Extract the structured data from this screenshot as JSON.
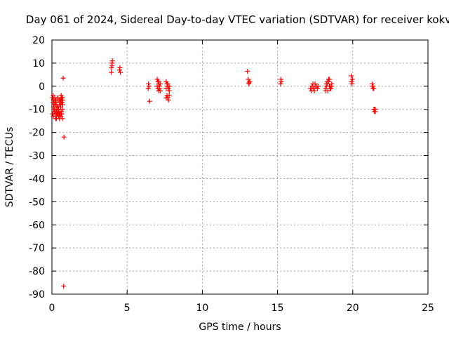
{
  "chart_data": {
    "type": "scatter",
    "title": "Day 061 of 2024, Sidereal Day-to-day VTEC variation (SDTVAR) for receiver kokv",
    "xlabel": "GPS time / hours",
    "ylabel": "SDTVAR / TECUs",
    "xlim": [
      0,
      25
    ],
    "ylim": [
      -90,
      20
    ],
    "xticks": [
      0,
      5,
      10,
      15,
      20,
      25
    ],
    "yticks": [
      20,
      10,
      0,
      -10,
      -20,
      -30,
      -40,
      -50,
      -60,
      -70,
      -80,
      -90
    ],
    "grid": true,
    "marker": "+",
    "color": "#ff0000",
    "series": [
      {
        "name": "SDTVAR",
        "x": [
          0.05,
          0.08,
          0.1,
          0.12,
          0.15,
          0.18,
          0.2,
          0.22,
          0.25,
          0.28,
          0.3,
          0.32,
          0.35,
          0.38,
          0.4,
          0.42,
          0.45,
          0.48,
          0.5,
          0.52,
          0.55,
          0.58,
          0.6,
          0.62,
          0.65,
          0.68,
          0.7,
          0.72,
          0.05,
          0.1,
          0.15,
          0.2,
          0.25,
          0.3,
          0.35,
          0.4,
          0.45,
          0.5,
          0.55,
          0.6,
          0.65,
          0.7,
          0.1,
          0.2,
          0.3,
          0.4,
          0.5,
          0.6,
          0.7,
          0.15,
          0.25,
          0.35,
          0.45,
          0.55,
          0.65,
          0.08,
          0.18,
          0.28,
          0.38,
          0.48,
          0.58,
          0.68,
          0.12,
          0.22,
          0.32,
          0.42,
          0.52,
          0.62,
          0.72,
          0.3,
          0.5,
          0.65,
          0.75,
          0.8,
          0.78,
          3.95,
          3.97,
          4.0,
          4.0,
          4.02,
          4.5,
          4.52,
          4.55,
          6.4,
          6.45,
          6.42,
          6.5,
          7.0,
          7.05,
          7.1,
          7.15,
          7.2,
          7.0,
          7.05,
          7.1,
          7.15,
          7.2,
          7.1,
          7.6,
          7.65,
          7.7,
          7.75,
          7.8,
          7.6,
          7.65,
          7.7,
          7.75,
          7.8,
          7.6,
          7.7,
          7.8,
          13.0,
          13.05,
          13.1,
          13.15,
          13.1,
          15.2,
          15.22,
          15.25,
          17.2,
          17.25,
          17.3,
          17.35,
          17.4,
          17.45,
          17.5,
          17.2,
          17.3,
          17.4,
          17.5,
          17.6,
          17.65,
          17.7,
          18.2,
          18.25,
          18.3,
          18.35,
          18.4,
          18.45,
          18.5,
          18.55,
          18.6,
          18.2,
          18.3,
          18.4,
          18.5,
          18.6,
          18.25,
          18.45,
          19.9,
          19.92,
          19.95,
          19.98,
          21.3,
          21.35,
          21.4,
          21.45,
          21.5,
          21.3,
          21.35,
          21.4,
          21.45,
          21.5
        ],
        "y": [
          -5,
          -7,
          -6,
          -9,
          -8,
          -10,
          -11,
          -7,
          -6,
          -12,
          -13,
          -8,
          -9,
          -5,
          -6,
          -10,
          -11,
          -12,
          -7,
          -8,
          -6,
          -9,
          -5,
          -4,
          -6,
          -7,
          -5,
          -8,
          -12,
          -13,
          -11,
          -12,
          -14,
          -13,
          -12,
          -11,
          -13,
          -14,
          -12,
          -13,
          -11,
          -14,
          -9,
          -10,
          -11,
          -12,
          -13,
          -12,
          -10,
          -7,
          -8,
          -9,
          -10,
          -11,
          -12,
          -4,
          -5,
          -6,
          -5,
          -6,
          -7,
          -5,
          -10,
          -11,
          -10,
          -9,
          -8,
          -7,
          -6,
          -14,
          -13,
          -12,
          3.5,
          -22,
          -86.5,
          6,
          8,
          9,
          10,
          11,
          7,
          8,
          6,
          -1,
          0,
          1,
          -6.5,
          3,
          2,
          1,
          -1,
          -2,
          0,
          -1,
          -2,
          0,
          1,
          2,
          -5,
          -4,
          -5,
          -6,
          -4,
          2,
          1,
          0,
          -1,
          -2,
          -1,
          1,
          0,
          6.5,
          3,
          1.5,
          2,
          1,
          1,
          3,
          2,
          -1,
          -2,
          0,
          1,
          -1,
          -2,
          0,
          -1,
          0,
          -1,
          1,
          0,
          -1,
          0,
          -1,
          0,
          1,
          -2,
          2,
          3,
          0,
          -1,
          1,
          -2,
          2,
          3,
          -1,
          0,
          1,
          0,
          4.5,
          2,
          1,
          3,
          0,
          -1,
          -10,
          -11,
          -10,
          1,
          0,
          -1,
          -10,
          -11
        ]
      }
    ]
  }
}
